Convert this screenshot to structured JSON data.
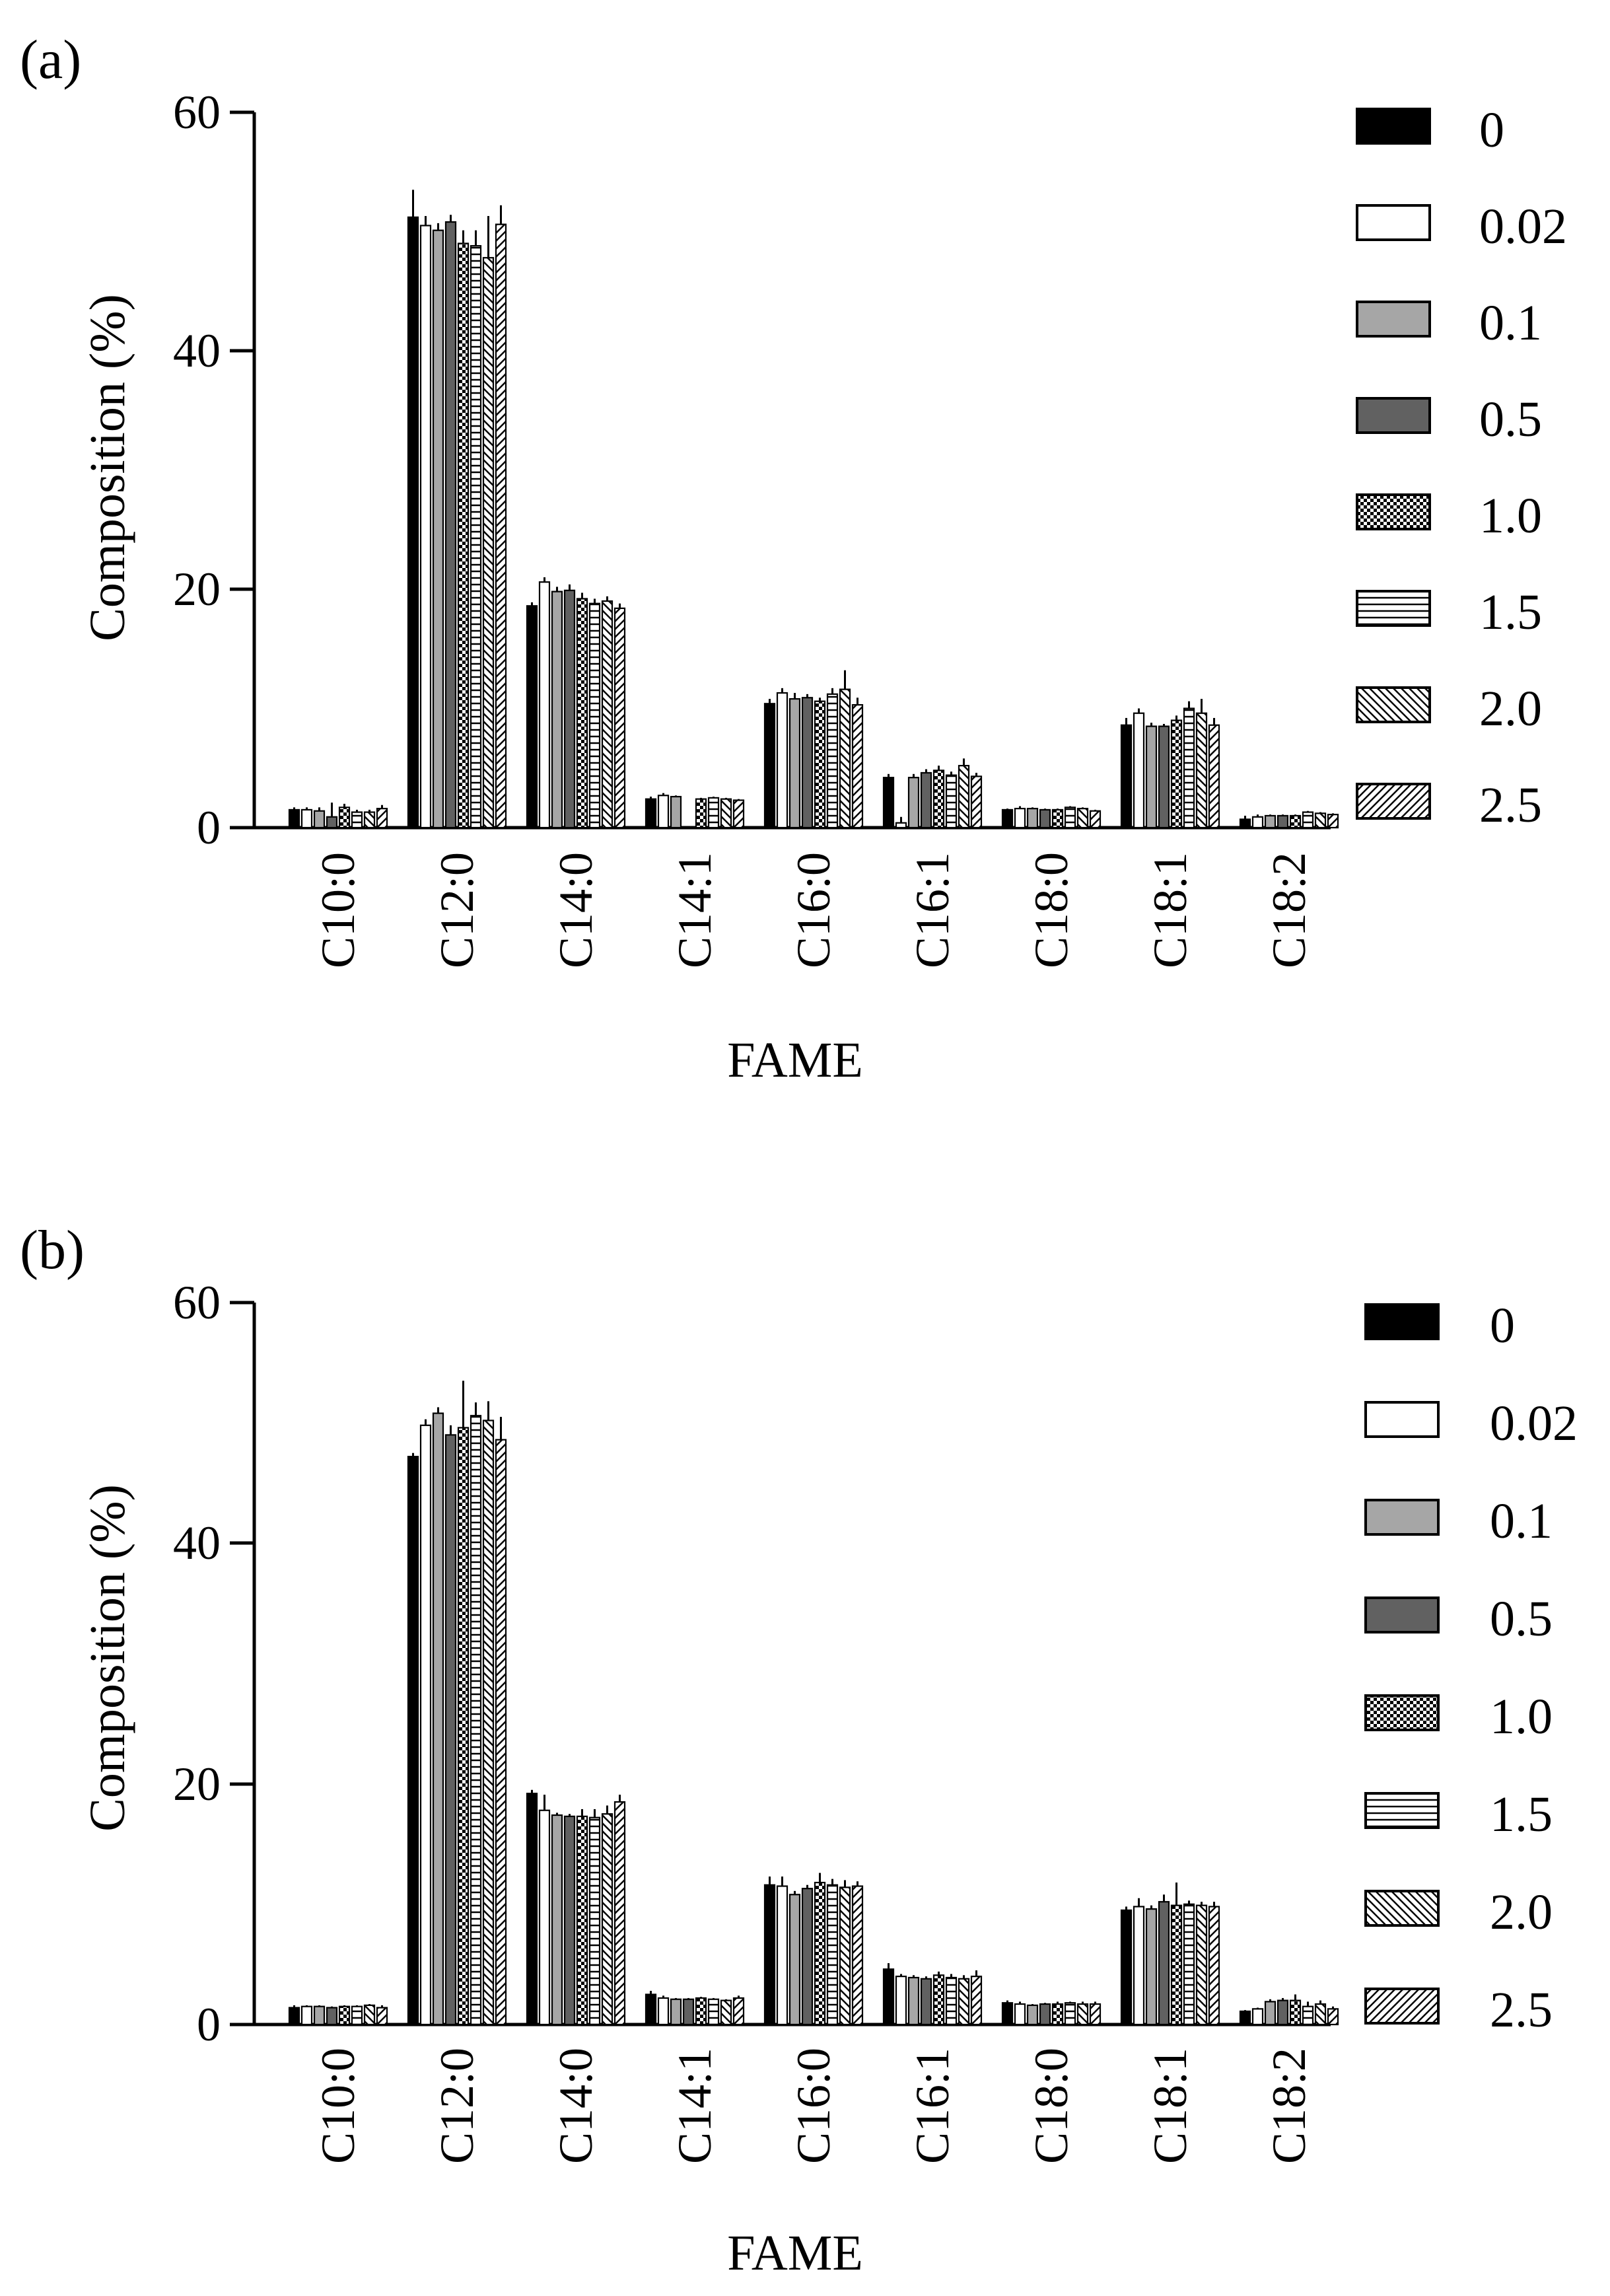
{
  "chart_data": [
    {
      "panel_label": "(a)",
      "type": "bar",
      "ylabel": "Composition (%)",
      "xlabel": "FAME",
      "ylim": [
        0,
        60
      ],
      "yticks": [
        "0",
        "20",
        "40",
        "60"
      ],
      "categories": [
        "C10:0",
        "C12:0",
        "C14:0",
        "C14:1",
        "C16:0",
        "C16:1",
        "C18:0",
        "C18:1",
        "C18:2"
      ],
      "series": [
        {
          "name": "0",
          "pattern": "solid-black",
          "values": [
            1.5,
            51.2,
            18.6,
            2.4,
            10.4,
            4.2,
            1.5,
            8.6,
            0.7
          ],
          "errors": [
            0.2,
            2.3,
            0.3,
            0.2,
            0.4,
            0.3,
            0.1,
            0.6,
            0.3
          ]
        },
        {
          "name": "0.02",
          "pattern": "white",
          "values": [
            1.5,
            50.5,
            20.6,
            2.7,
            11.3,
            0.4,
            1.6,
            9.6,
            0.9
          ],
          "errors": [
            0.2,
            0.8,
            0.4,
            0.2,
            0.4,
            0.5,
            0.2,
            0.4,
            0.2
          ]
        },
        {
          "name": "0.1",
          "pattern": "light-gray",
          "values": [
            1.4,
            50.1,
            19.8,
            2.6,
            10.8,
            4.2,
            1.6,
            8.5,
            1.0
          ],
          "errors": [
            0.3,
            0.6,
            0.4,
            0.1,
            0.5,
            0.3,
            0.1,
            0.3,
            0.1
          ]
        },
        {
          "name": "0.5",
          "pattern": "dark-gray",
          "values": [
            0.9,
            50.8,
            19.9,
            0.0,
            10.9,
            4.6,
            1.5,
            8.5,
            1.0
          ],
          "errors": [
            1.2,
            0.6,
            0.5,
            0.0,
            0.3,
            0.3,
            0.1,
            0.2,
            0.1
          ]
        },
        {
          "name": "1.0",
          "pattern": "checker",
          "values": [
            1.7,
            49.0,
            19.2,
            2.4,
            10.6,
            4.8,
            1.5,
            9.0,
            1.0
          ],
          "errors": [
            0.3,
            1.1,
            0.5,
            0.1,
            0.3,
            0.4,
            0.1,
            0.4,
            0.1
          ]
        },
        {
          "name": "1.5",
          "pattern": "horizontal",
          "values": [
            1.3,
            48.8,
            18.8,
            2.5,
            11.2,
            4.4,
            1.7,
            10.0,
            1.3
          ],
          "errors": [
            0.2,
            1.3,
            0.4,
            0.1,
            0.5,
            0.3,
            0.1,
            0.6,
            0.1
          ]
        },
        {
          "name": "2.0",
          "pattern": "back-diag",
          "values": [
            1.3,
            47.8,
            19.0,
            2.4,
            11.6,
            5.2,
            1.6,
            9.6,
            1.2
          ],
          "errors": [
            0.2,
            3.5,
            0.4,
            0.1,
            1.6,
            0.6,
            0.1,
            1.2,
            0.1
          ]
        },
        {
          "name": "2.5",
          "pattern": "fwd-diag",
          "values": [
            1.6,
            50.6,
            18.4,
            2.3,
            10.3,
            4.3,
            1.4,
            8.6,
            1.1
          ],
          "errors": [
            0.3,
            1.6,
            0.4,
            0.1,
            0.6,
            0.3,
            0.1,
            0.6,
            0.1
          ]
        }
      ]
    },
    {
      "panel_label": "(b)",
      "type": "bar",
      "ylabel": "Composition (%)",
      "xlabel": "FAME",
      "ylim": [
        0,
        60
      ],
      "yticks": [
        "0",
        "20",
        "40",
        "60"
      ],
      "categories": [
        "C10:0",
        "C12:0",
        "C14:0",
        "C14:1",
        "C16:0",
        "C16:1",
        "C18:0",
        "C18:1",
        "C18:2"
      ],
      "series": [
        {
          "name": "0",
          "pattern": "solid-black",
          "values": [
            1.4,
            47.2,
            19.2,
            2.5,
            11.6,
            4.6,
            1.8,
            9.5,
            1.1
          ],
          "errors": [
            0.2,
            0.3,
            0.3,
            0.3,
            0.7,
            0.5,
            0.2,
            0.3,
            0.1
          ]
        },
        {
          "name": "0.02",
          "pattern": "white",
          "values": [
            1.5,
            49.8,
            17.8,
            2.2,
            11.5,
            4.0,
            1.7,
            9.8,
            1.3
          ],
          "errors": [
            0.1,
            0.5,
            1.3,
            0.2,
            0.8,
            0.2,
            0.2,
            0.7,
            0.1
          ]
        },
        {
          "name": "0.1",
          "pattern": "light-gray",
          "values": [
            1.5,
            50.8,
            17.4,
            2.1,
            10.8,
            3.9,
            1.6,
            9.6,
            1.9
          ],
          "errors": [
            0.1,
            0.5,
            0.2,
            0.1,
            0.3,
            0.2,
            0.1,
            0.3,
            0.2
          ]
        },
        {
          "name": "0.5",
          "pattern": "dark-gray",
          "values": [
            1.4,
            49.0,
            17.3,
            2.1,
            11.3,
            3.8,
            1.7,
            10.2,
            2.0
          ],
          "errors": [
            0.1,
            0.8,
            0.2,
            0.1,
            0.3,
            0.2,
            0.1,
            0.6,
            0.2
          ]
        },
        {
          "name": "1.0",
          "pattern": "checker",
          "values": [
            1.5,
            49.6,
            17.3,
            2.2,
            11.8,
            4.1,
            1.7,
            9.9,
            2.0
          ],
          "errors": [
            0.1,
            3.9,
            0.6,
            0.1,
            0.8,
            0.3,
            0.2,
            1.9,
            0.5
          ]
        },
        {
          "name": "1.5",
          "pattern": "horizontal",
          "values": [
            1.5,
            50.6,
            17.2,
            2.1,
            11.6,
            3.9,
            1.8,
            10.0,
            1.5
          ],
          "errors": [
            0.1,
            1.1,
            0.7,
            0.1,
            0.5,
            0.3,
            0.1,
            0.3,
            0.4
          ]
        },
        {
          "name": "2.0",
          "pattern": "back-diag",
          "values": [
            1.6,
            50.2,
            17.5,
            2.0,
            11.4,
            3.8,
            1.7,
            9.9,
            1.7
          ],
          "errors": [
            0.1,
            1.6,
            0.7,
            0.1,
            0.6,
            0.3,
            0.2,
            0.3,
            0.3
          ]
        },
        {
          "name": "2.5",
          "pattern": "fwd-diag",
          "values": [
            1.4,
            48.6,
            18.5,
            2.2,
            11.5,
            4.0,
            1.7,
            9.8,
            1.3
          ],
          "errors": [
            0.2,
            1.9,
            0.6,
            0.2,
            0.4,
            0.5,
            0.2,
            0.4,
            0.2
          ]
        }
      ]
    }
  ]
}
